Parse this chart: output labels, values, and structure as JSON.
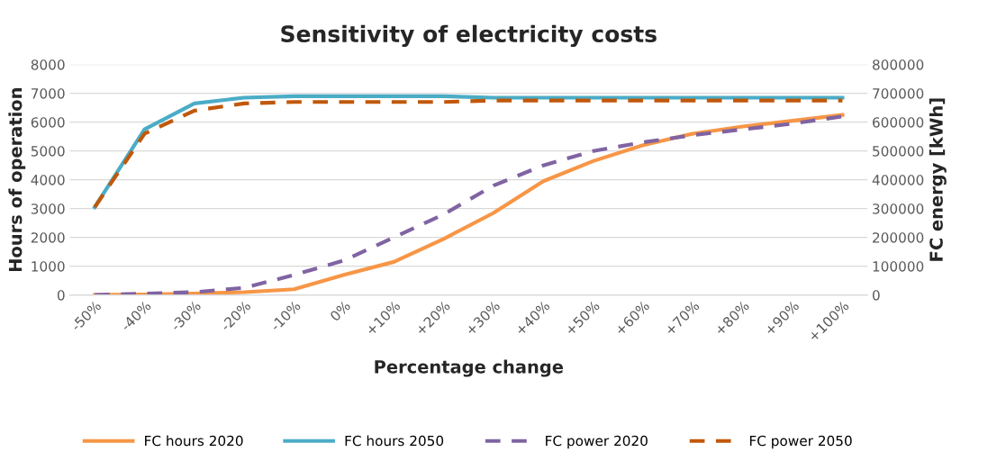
{
  "chart_data": {
    "type": "line",
    "title": "Sensitivity of electricity costs",
    "xlabel": "Percentage change",
    "ylabel": "Hours of operation",
    "y2label": "FC energy [kWh]",
    "categories": [
      "-50%",
      "-40%",
      "-30%",
      "-20%",
      "-10%",
      "0%",
      "+10%",
      "+20%",
      "+30%",
      "+40%",
      "+50%",
      "+60%",
      "+70%",
      "+80%",
      "+90%",
      "+100%"
    ],
    "ylim": [
      0,
      8000
    ],
    "yticks": [
      0,
      1000,
      2000,
      3000,
      4000,
      5000,
      6000,
      7000,
      8000
    ],
    "y2lim": [
      0,
      800000
    ],
    "y2ticks": [
      0,
      100000,
      200000,
      300000,
      400000,
      500000,
      600000,
      700000,
      800000
    ],
    "grid": "y",
    "legend": "bottom",
    "marker": "none",
    "series": [
      {
        "name": "FC hours 2020",
        "color": "#f79646",
        "line_style": "solid",
        "values": [
          0,
          20,
          50,
          100,
          200,
          700,
          1150,
          1950,
          2850,
          3950,
          4650,
          5200,
          5600,
          5850,
          6050,
          6250
        ]
      },
      {
        "name": "FC hours 2050",
        "color": "#4bacc6",
        "line_style": "solid",
        "values": [
          3050,
          5750,
          6650,
          6850,
          6900,
          6900,
          6900,
          6900,
          6850,
          6850,
          6850,
          6850,
          6850,
          6850,
          6850,
          6850
        ]
      },
      {
        "name": "FC power 2020",
        "color": "#8064a2",
        "line_style": "dashed",
        "axis": "y2",
        "values": [
          0,
          5000,
          10000,
          25000,
          70000,
          120000,
          200000,
          280000,
          380000,
          450000,
          500000,
          530000,
          555000,
          575000,
          595000,
          620000
        ]
      },
      {
        "name": "FC power 2050",
        "color": "#c0580a",
        "line_style": "dashed",
        "axis": "y2",
        "values": [
          305000,
          560000,
          640000,
          665000,
          670000,
          670000,
          670000,
          670000,
          675000,
          675000,
          675000,
          675000,
          675000,
          675000,
          675000,
          675000
        ]
      }
    ]
  }
}
